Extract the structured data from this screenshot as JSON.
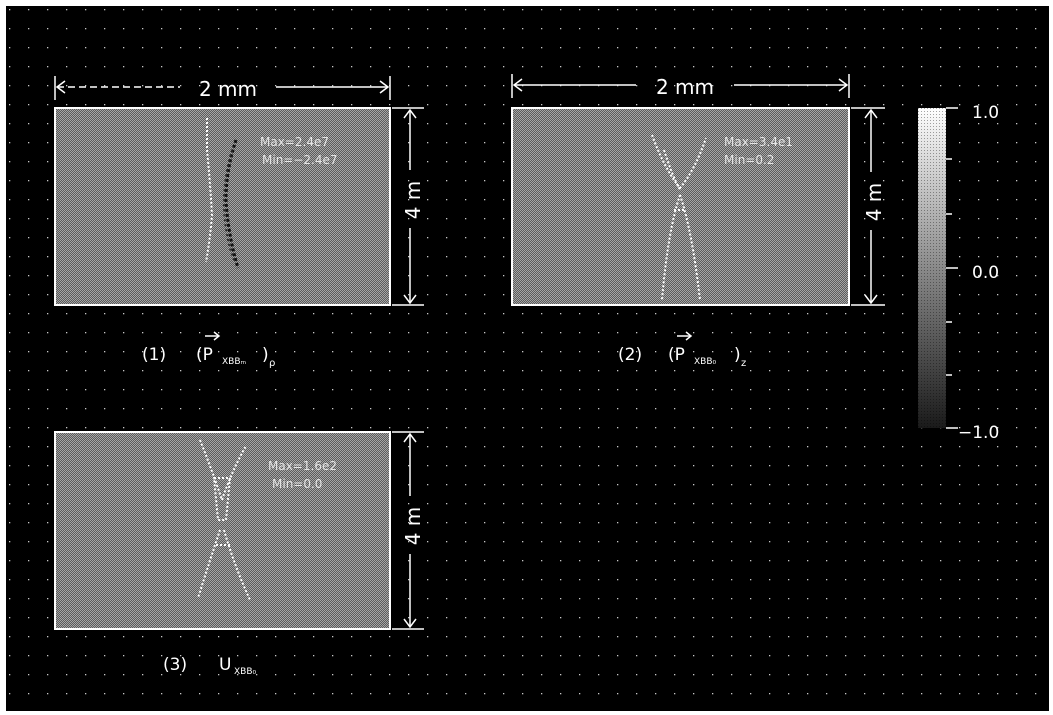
{
  "colors": {
    "background": "#000000",
    "frame": "#ffffff",
    "panel_field": "#7a7a7a",
    "dim_lines": "#ffffff",
    "feature_light": "#ffffff",
    "feature_dark": "#111111"
  },
  "panels": [
    {
      "id": "p1",
      "width_label": "2 mm",
      "height_label": "4 m",
      "caption_num": "(1)",
      "caption_sym": "(P",
      "caption_sub": "XBBₘ",
      "caption_close": ")",
      "caption_tail": "ρ",
      "annotation": [
        "Max=2.4e7",
        "Min=−2.4e7"
      ]
    },
    {
      "id": "p2",
      "width_label": "2 mm",
      "height_label": "4 m",
      "caption_num": "(2)",
      "caption_sym": "(P",
      "caption_sub": "XBB₀",
      "caption_close": ")",
      "caption_tail": "z",
      "annotation": [
        "Max=3.4e1",
        "Min=0.2"
      ]
    },
    {
      "id": "p3",
      "width_label": "",
      "height_label": "4 m",
      "caption_num": "(3)",
      "caption_sym": "U",
      "caption_sub": "XBB₀",
      "caption_close": "",
      "caption_tail": "",
      "annotation": [
        "Max=1.6e2",
        "Min=0.0"
      ]
    }
  ],
  "colorbar": {
    "ticks": [
      "1.0",
      "0.0",
      "−1.0"
    ]
  }
}
